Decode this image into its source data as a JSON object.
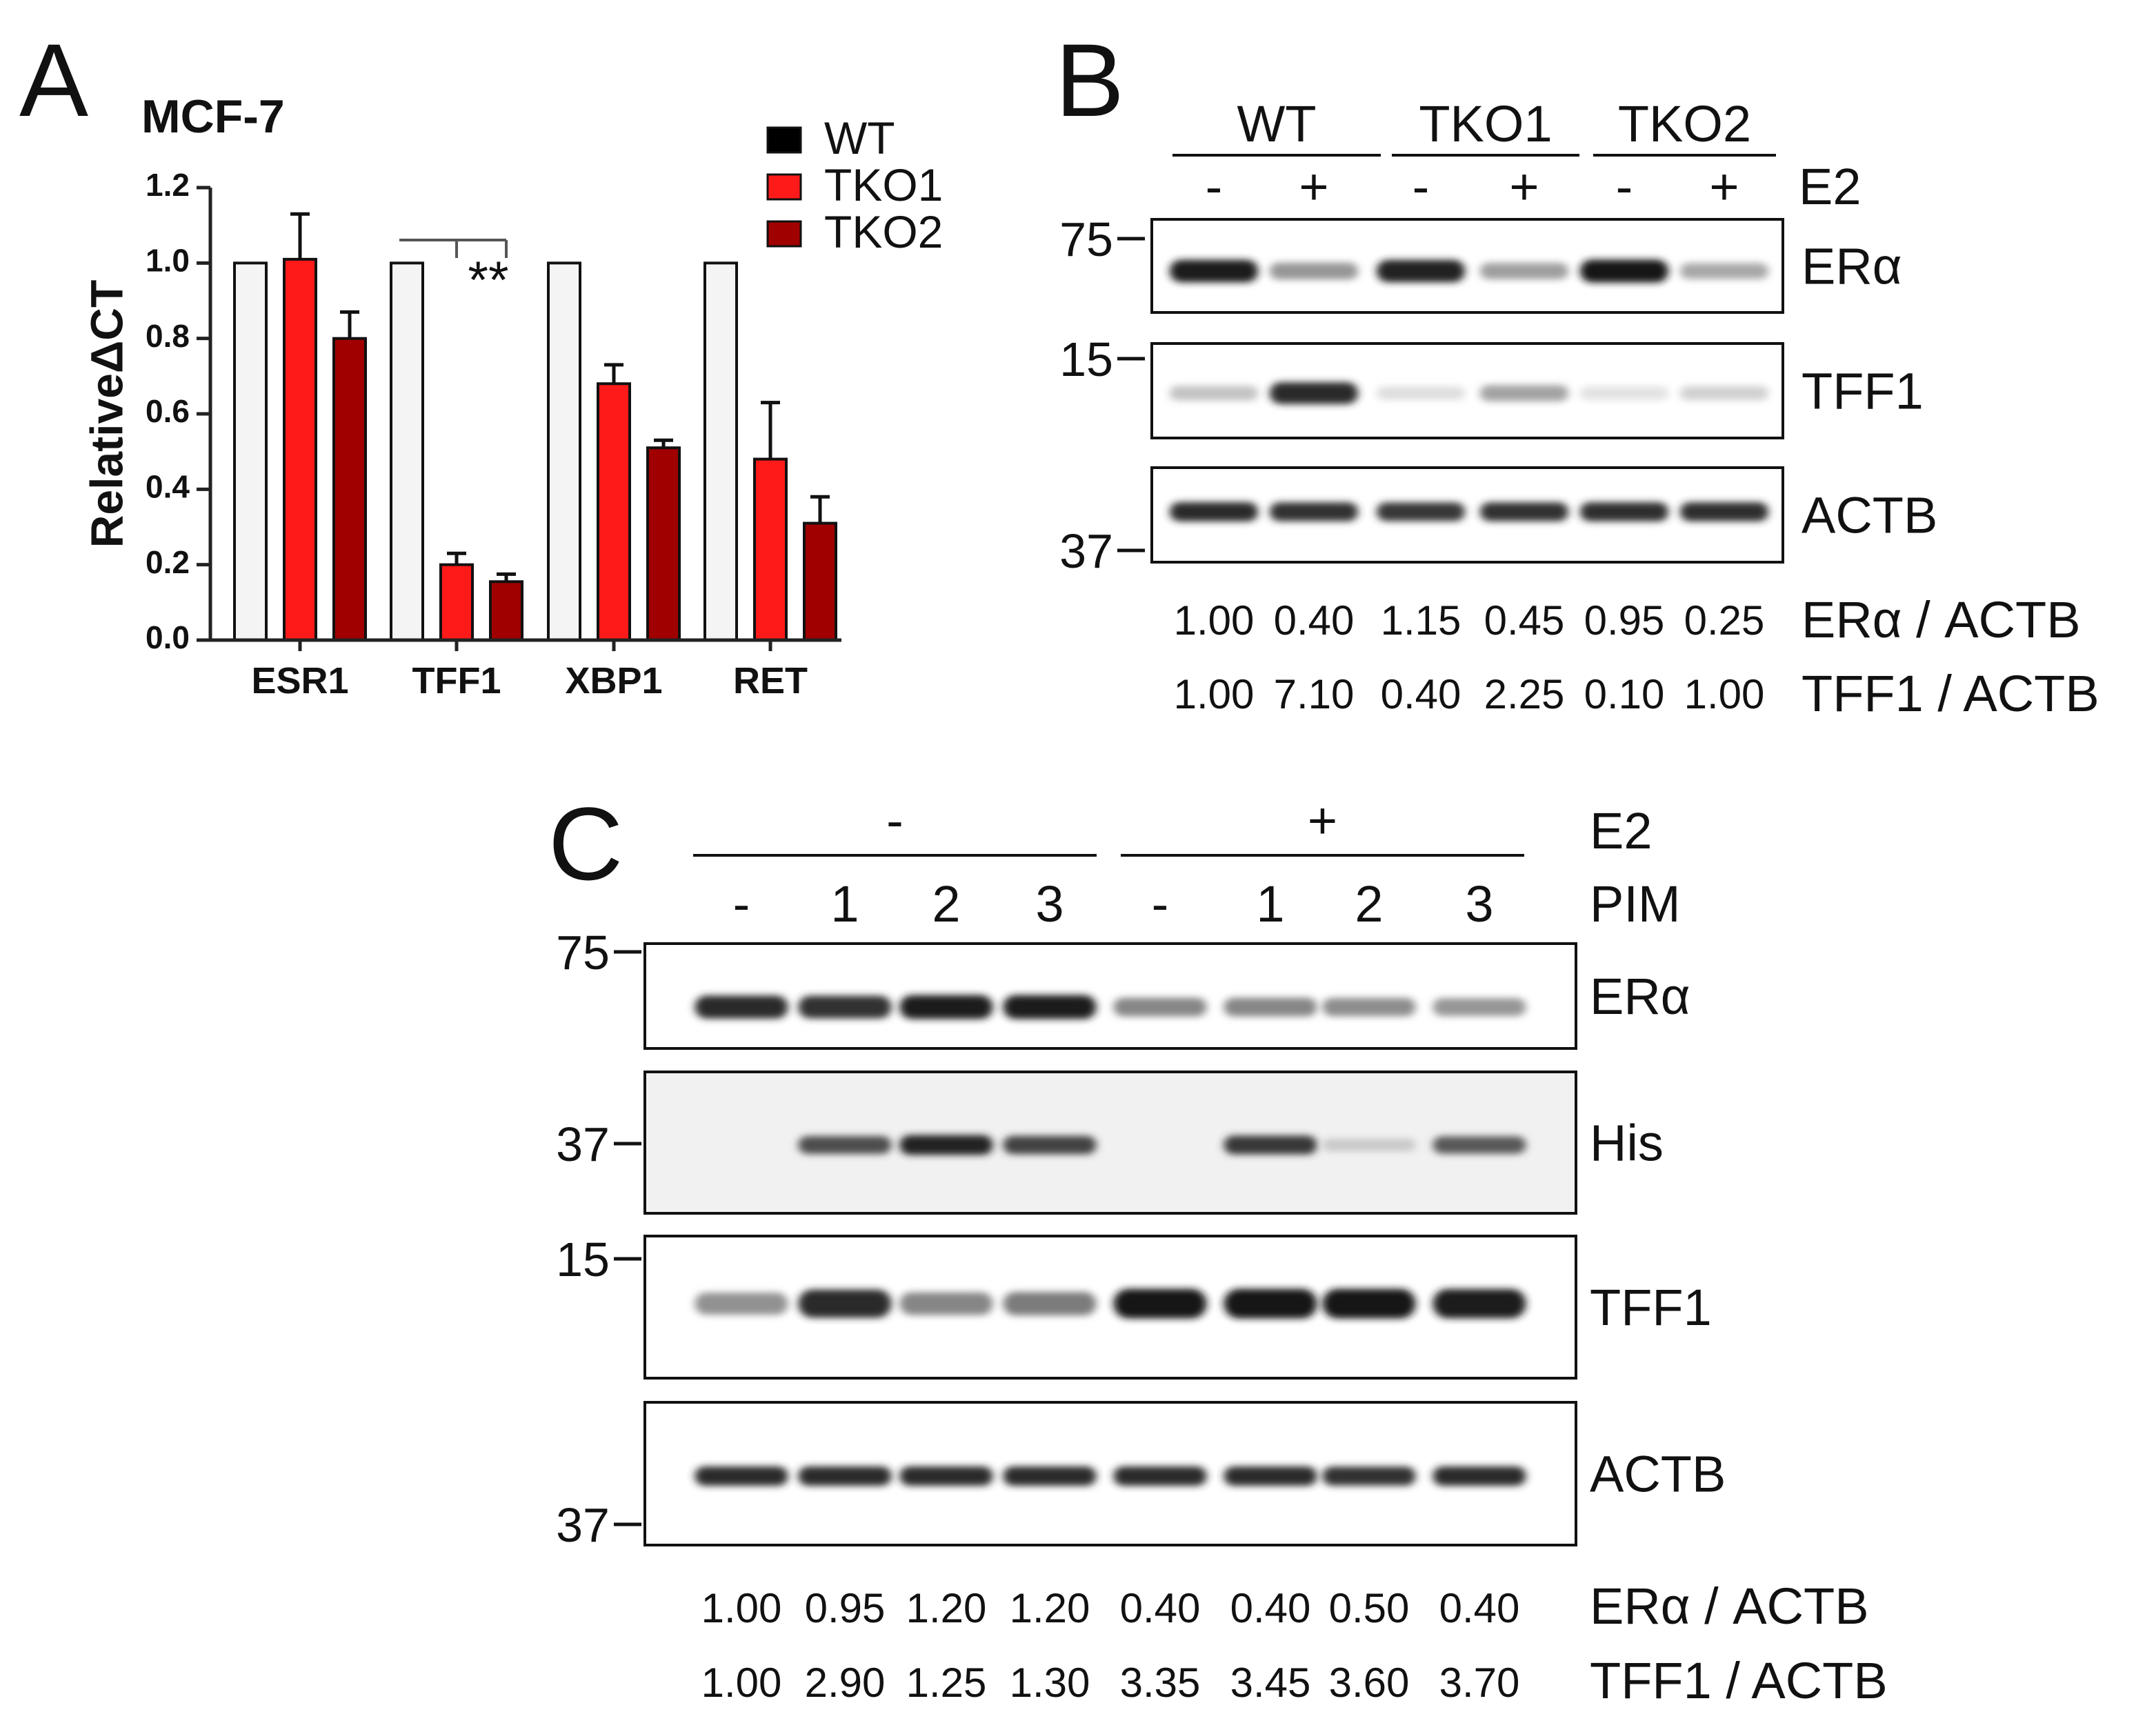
{
  "panels": {
    "a": {
      "letter": "A",
      "title": "MCF-7",
      "significance": "**"
    },
    "b": {
      "letter": "B",
      "groups": [
        "WT",
        "TKO1",
        "TKO2"
      ],
      "treatment_label": "E2",
      "treatment": [
        "-",
        "+",
        "-",
        "+",
        "-",
        "+"
      ],
      "blots": [
        {
          "label": "ERα",
          "mw": "75",
          "intensities": [
            0.92,
            0.38,
            0.9,
            0.34,
            0.95,
            0.3
          ]
        },
        {
          "label": "TFF1",
          "mw": "15",
          "intensities": [
            0.18,
            0.85,
            0.06,
            0.32,
            0.04,
            0.12
          ]
        },
        {
          "label": "ACTB",
          "mw": "37",
          "intensities": [
            0.85,
            0.82,
            0.8,
            0.82,
            0.84,
            0.84
          ]
        }
      ],
      "quantification": [
        {
          "label": "ERα / ACTB",
          "values": [
            "1.00",
            "0.40",
            "1.15",
            "0.45",
            "0.95",
            "0.25"
          ]
        },
        {
          "label": "TFF1 / ACTB",
          "values": [
            "1.00",
            "7.10",
            "0.40",
            "2.25",
            "0.10",
            "1.00"
          ]
        }
      ]
    },
    "c": {
      "letter": "C",
      "treatment_label": "E2",
      "treatment_groups": [
        "-",
        "+"
      ],
      "pim_label": "PIM",
      "pim": [
        "-",
        "1",
        "2",
        "3",
        "-",
        "1",
        "2",
        "3"
      ],
      "blots": [
        {
          "label": "ERα",
          "mw": "75",
          "intensities": [
            0.85,
            0.82,
            0.92,
            0.92,
            0.45,
            0.45,
            0.42,
            0.38
          ]
        },
        {
          "label": "His",
          "mw": "37",
          "intensities": [
            0.0,
            0.7,
            0.9,
            0.75,
            0.0,
            0.8,
            0.15,
            0.65
          ]
        },
        {
          "label": "TFF1",
          "mw": "15",
          "intensities": [
            0.4,
            0.85,
            0.45,
            0.5,
            0.95,
            0.95,
            0.95,
            0.92
          ]
        },
        {
          "label": "ACTB",
          "mw": "37",
          "intensities": [
            0.85,
            0.85,
            0.85,
            0.85,
            0.85,
            0.85,
            0.82,
            0.85
          ]
        }
      ],
      "quantification": [
        {
          "label": "ERα / ACTB",
          "values": [
            "1.00",
            "0.95",
            "1.20",
            "1.20",
            "0.40",
            "0.40",
            "0.50",
            "0.40"
          ]
        },
        {
          "label": "TFF1 / ACTB",
          "values": [
            "1.00",
            "2.90",
            "1.25",
            "1.30",
            "3.35",
            "3.45",
            "3.60",
            "3.70"
          ]
        }
      ]
    }
  },
  "chart_data": {
    "type": "bar",
    "title": "MCF-7",
    "xlabel": "",
    "ylabel": "RelativeΔCT",
    "ylim": [
      0,
      1.2
    ],
    "yticks": [
      "0.0",
      "0.2",
      "0.4",
      "0.6",
      "0.8",
      "1.0",
      "1.2"
    ],
    "categories": [
      "ESR1",
      "TFF1",
      "XBP1",
      "RET"
    ],
    "series": [
      {
        "name": "WT",
        "values": [
          1.0,
          1.0,
          1.0,
          1.0
        ],
        "errors": [
          0,
          0,
          0,
          0
        ],
        "color": "#f4f4f4"
      },
      {
        "name": "TKO1",
        "values": [
          1.01,
          0.2,
          0.68,
          0.48
        ],
        "errors": [
          0.12,
          0.03,
          0.05,
          0.15
        ],
        "color": "#ff1a1a"
      },
      {
        "name": "TKO2",
        "values": [
          0.8,
          0.155,
          0.51,
          0.31
        ],
        "errors": [
          0.07,
          0.02,
          0.02,
          0.07
        ],
        "color": "#a00000"
      }
    ],
    "legend": {
      "position": "top-right",
      "swatch_colors": [
        "#000000",
        "#ff1a1a",
        "#a00000"
      ]
    },
    "grid": false
  }
}
